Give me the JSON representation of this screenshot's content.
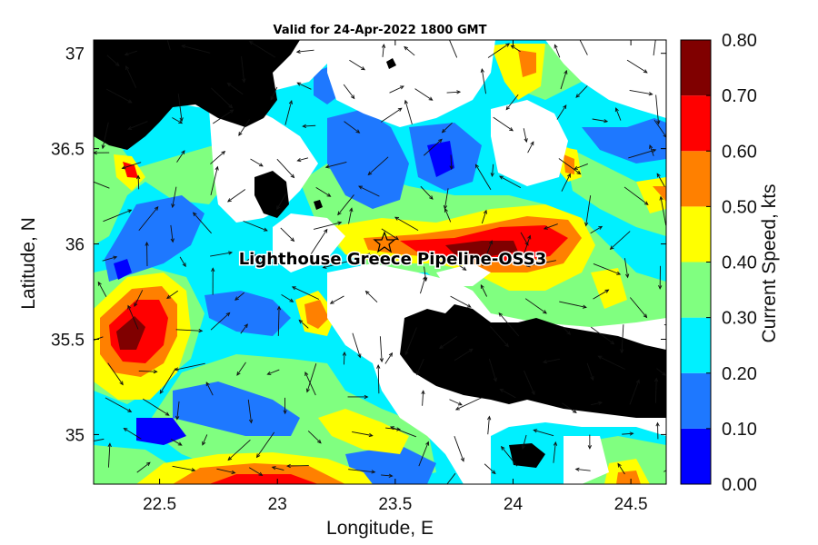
{
  "title": "Valid for 24-Apr-2022 1800 GMT",
  "x_axis": {
    "label": "Longitude, E",
    "ticks": [
      "22.5",
      "23",
      "23.5",
      "24",
      "24.5"
    ],
    "range": [
      22.22,
      24.65
    ]
  },
  "y_axis": {
    "label": "Latitude, N",
    "ticks": [
      "37",
      "36.5",
      "36",
      "35.5",
      "35"
    ],
    "range": [
      34.74,
      37.07
    ]
  },
  "colorbar": {
    "label": "Current Speed, kts",
    "ticks": [
      "0.00",
      "0.10",
      "0.20",
      "0.30",
      "0.40",
      "0.50",
      "0.60",
      "0.70",
      "0.80"
    ],
    "colors": [
      "#0000ff",
      "#1e78ff",
      "#00f0ff",
      "#80ff80",
      "#ffff00",
      "#ff8000",
      "#ff0000",
      "#800000"
    ]
  },
  "station": {
    "name": "Lighthouse Greece Pipeline-OSS3",
    "lon": 23.5,
    "lat": 36.0
  },
  "colors": {
    "land": "#000000",
    "nodata": "#ffffff",
    "arrow": "#111111"
  }
}
